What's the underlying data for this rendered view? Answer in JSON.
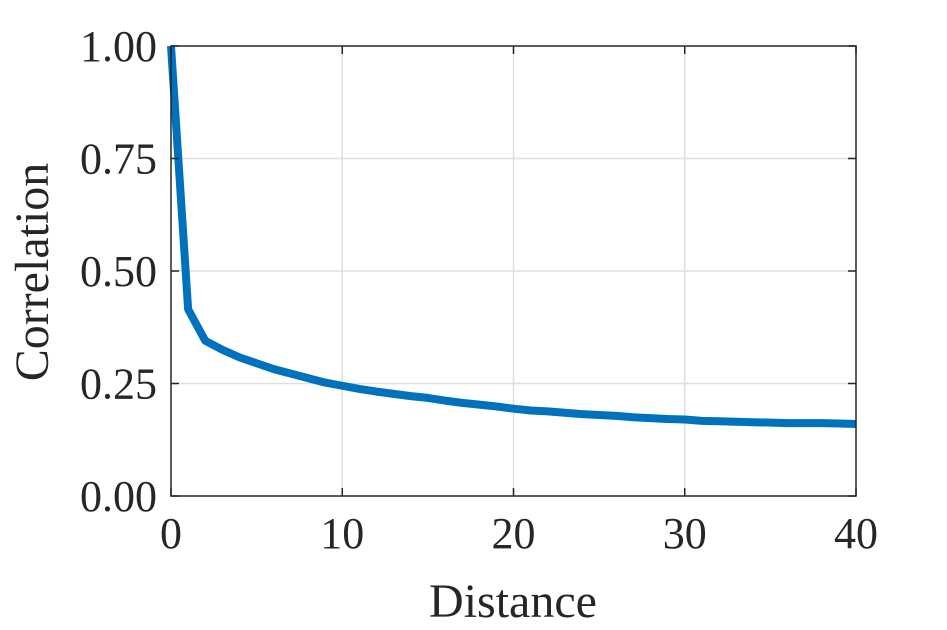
{
  "chart_data": {
    "type": "line",
    "title": "",
    "xlabel": "Distance",
    "ylabel": "Correlation",
    "xlim": [
      0,
      40
    ],
    "ylim": [
      0,
      1
    ],
    "xticks": [
      0,
      10,
      20,
      30,
      40
    ],
    "xtick_labels": [
      "0",
      "10",
      "20",
      "30",
      "40"
    ],
    "yticks": [
      0,
      0.25,
      0.5,
      0.75,
      1
    ],
    "ytick_labels": [
      "0.00",
      "0.25",
      "0.50",
      "0.75",
      "1.00"
    ],
    "grid": true,
    "series": [
      {
        "color": "#0072BD",
        "x": [
          0,
          1,
          2,
          3,
          4,
          5,
          6,
          7,
          8,
          9,
          10,
          11,
          12,
          13,
          14,
          15,
          16,
          17,
          18,
          19,
          20,
          21,
          22,
          23,
          24,
          25,
          26,
          27,
          28,
          29,
          30,
          31,
          32,
          33,
          34,
          35,
          36,
          37,
          38,
          39,
          40
        ],
        "y": [
          1.0,
          0.415,
          0.345,
          0.325,
          0.308,
          0.295,
          0.282,
          0.272,
          0.262,
          0.252,
          0.245,
          0.238,
          0.232,
          0.227,
          0.222,
          0.218,
          0.212,
          0.207,
          0.203,
          0.199,
          0.194,
          0.19,
          0.188,
          0.185,
          0.182,
          0.18,
          0.178,
          0.175,
          0.173,
          0.171,
          0.17,
          0.167,
          0.166,
          0.165,
          0.164,
          0.163,
          0.162,
          0.162,
          0.162,
          0.161,
          0.16
        ]
      }
    ]
  }
}
